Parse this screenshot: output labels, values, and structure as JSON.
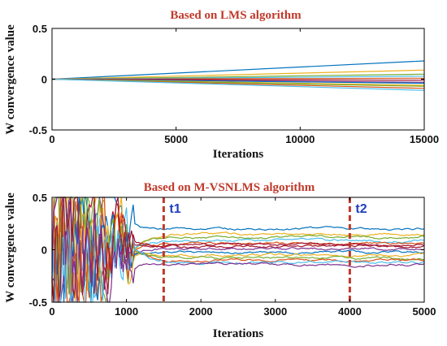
{
  "chart_data": [
    {
      "type": "line",
      "title": "Based on LMS algorithm",
      "xlabel": "Iterations",
      "ylabel": "W convergence value",
      "xlim": [
        0,
        15000
      ],
      "ylim": [
        -0.5,
        0.5
      ],
      "xticks": [
        "0",
        "5000",
        "10000",
        "15000"
      ],
      "yticks": [
        "0.5",
        "0",
        "-0.5"
      ],
      "grid": false,
      "x": [
        0,
        15000
      ],
      "series": [
        {
          "color": "#0072bd",
          "values": [
            0,
            0.18
          ]
        },
        {
          "color": "#edb120",
          "values": [
            0,
            0.09
          ]
        },
        {
          "color": "#77ac30",
          "values": [
            0,
            0.05
          ]
        },
        {
          "color": "#4dbeee",
          "values": [
            0,
            0.03
          ]
        },
        {
          "color": "#d95319",
          "values": [
            0,
            0.01
          ]
        },
        {
          "color": "#a2142f",
          "values": [
            0,
            -0.01
          ]
        },
        {
          "color": "#7e2f8e",
          "values": [
            0,
            -0.03
          ]
        },
        {
          "color": "#0072bd",
          "values": [
            0,
            -0.04
          ]
        },
        {
          "color": "#edb120",
          "values": [
            0,
            -0.06
          ]
        },
        {
          "color": "#77ac30",
          "values": [
            0,
            -0.07
          ]
        },
        {
          "color": "#d95319",
          "values": [
            0,
            -0.09
          ]
        },
        {
          "color": "#4dbeee",
          "values": [
            0,
            -0.11
          ]
        }
      ]
    },
    {
      "type": "line",
      "title": "Based on M-VSNLMS algorithm",
      "xlabel": "Iterations",
      "ylabel": "W convergence value",
      "xlim": [
        0,
        5000
      ],
      "ylim": [
        -0.5,
        0.5
      ],
      "xticks": [
        "0",
        "1000",
        "2000",
        "3000",
        "4000",
        "5000"
      ],
      "yticks": [
        "0.5",
        "0",
        "-0.5"
      ],
      "grid": false,
      "markers": [
        {
          "label": "t1",
          "x": 1500,
          "color": "#c0392b"
        },
        {
          "label": "t2",
          "x": 4000,
          "color": "#c0392b"
        }
      ],
      "series": [
        {
          "color": "#0072bd",
          "final": 0.2
        },
        {
          "color": "#edb120",
          "final": 0.15
        },
        {
          "color": "#77ac30",
          "final": 0.12
        },
        {
          "color": "#4dbeee",
          "final": 0.09
        },
        {
          "color": "#d95319",
          "final": 0.06
        },
        {
          "color": "#a2142f",
          "final": 0.03
        },
        {
          "color": "#7e2f8e",
          "final": 0.01
        },
        {
          "color": "#0072bd",
          "final": -0.02
        },
        {
          "color": "#edb120",
          "final": -0.05
        },
        {
          "color": "#77ac30",
          "final": -0.08
        },
        {
          "color": "#d95319",
          "final": -0.1
        },
        {
          "color": "#4dbeee",
          "final": -0.12
        },
        {
          "color": "#a2142f",
          "final": 0.05
        },
        {
          "color": "#7e2f8e",
          "final": -0.14
        }
      ]
    }
  ]
}
